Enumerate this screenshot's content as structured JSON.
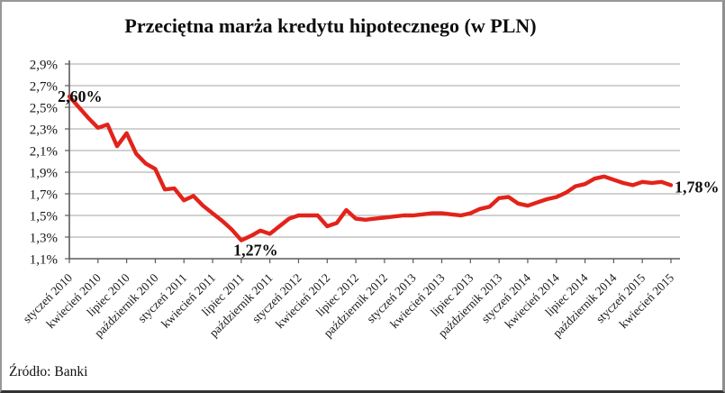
{
  "chart_data": {
    "type": "line",
    "title": "Przeciętna marża kredytu hipotecznego (w PLN)",
    "source": "Źródło: Banki",
    "ylim": [
      1.1,
      2.9
    ],
    "y_tick_step": 0.2,
    "y_tick_labels": [
      "2,9%",
      "2,7%",
      "2,5%",
      "2,3%",
      "2,1%",
      "1,9%",
      "1,7%",
      "1,5%",
      "1,3%",
      "1,1%"
    ],
    "x_tick_labels": [
      "styczeń 2010",
      "kwiecień 2010",
      "lipiec 2010",
      "październik 2010",
      "styczeń 2011",
      "kwiecień 2011",
      "lipiec 2011",
      "październik 2011",
      "styczeń 2012",
      "kwiecień 2012",
      "lipiec 2012",
      "październik 2012",
      "styczeń 2013",
      "kwiecień 2013",
      "lipiec 2013",
      "październik 2013",
      "styczeń 2014",
      "kwiecień 2014",
      "lipiec 2014",
      "październik 2014",
      "styczeń 2015",
      "kwiecień 2015"
    ],
    "x_range_months": 64,
    "x_start": "styczeń 2010",
    "x_end": "kwiecień 2015",
    "grid": "horizontal",
    "legend": "none",
    "series": [
      {
        "name": "przeciętna marża kredytu hipotecznego",
        "color": "#e2231a",
        "monthly_values": [
          2.6,
          2.5,
          2.4,
          2.31,
          2.34,
          2.14,
          2.26,
          2.07,
          1.98,
          1.93,
          1.74,
          1.75,
          1.64,
          1.68,
          1.59,
          1.52,
          1.45,
          1.37,
          1.27,
          1.31,
          1.36,
          1.33,
          1.4,
          1.47,
          1.5,
          1.5,
          1.5,
          1.4,
          1.43,
          1.55,
          1.47,
          1.46,
          1.47,
          1.48,
          1.49,
          1.5,
          1.5,
          1.51,
          1.52,
          1.52,
          1.51,
          1.5,
          1.52,
          1.56,
          1.58,
          1.66,
          1.67,
          1.61,
          1.59,
          1.62,
          1.65,
          1.67,
          1.71,
          1.77,
          1.79,
          1.84,
          1.86,
          1.83,
          1.8,
          1.78,
          1.81,
          1.8,
          1.81,
          1.78
        ]
      }
    ],
    "annotations": [
      {
        "text": "2,60%",
        "month_index": 0,
        "placement": "start"
      },
      {
        "text": "1,27%",
        "month_index": 18,
        "placement": "min"
      },
      {
        "text": "1,78%",
        "month_index": 63,
        "placement": "end"
      }
    ]
  }
}
